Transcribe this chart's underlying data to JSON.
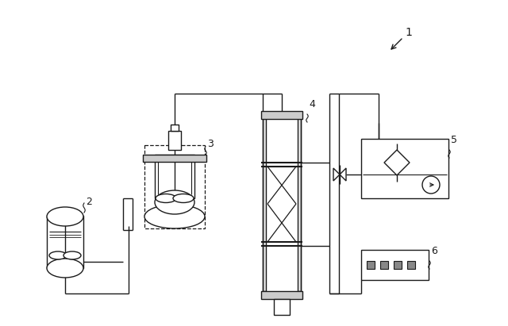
{
  "line_color": "#1a1a1a",
  "label_1": "1",
  "label_2": "2",
  "label_3": "3",
  "label_4": "4",
  "label_5": "5",
  "label_6": "6"
}
